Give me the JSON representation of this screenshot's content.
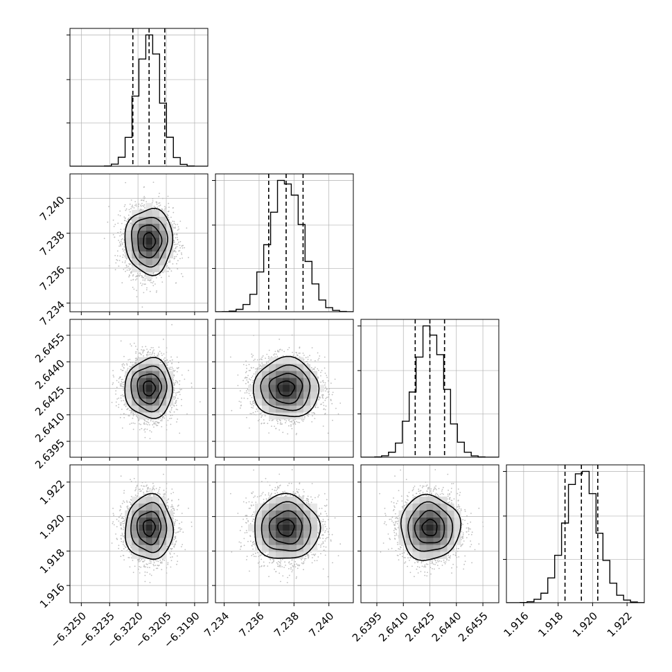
{
  "chart_data": {
    "type": "corner",
    "title": "",
    "grid": true,
    "parameters": [
      {
        "range": [
          -6.3256,
          -6.3183
        ],
        "ticks": [
          -6.325,
          -6.3235,
          -6.322,
          -6.3205,
          -6.319
        ],
        "tick_labels": [
          "−6.3250",
          "−6.3235",
          "−6.3220",
          "−6.3205",
          "−6.3190"
        ],
        "quantiles": [
          -6.32227,
          -6.32141,
          -6.32058
        ],
        "mean": -6.32141,
        "sd": 0.00063
      },
      {
        "range": [
          7.2335,
          7.2414
        ],
        "ticks": [
          7.234,
          7.236,
          7.238,
          7.24
        ],
        "tick_labels": [
          "7.234",
          "7.236",
          "7.238",
          "7.240"
        ],
        "quantiles": [
          7.23655,
          7.23755,
          7.23852
        ],
        "mean": 7.23755,
        "sd": 0.00094
      },
      {
        "range": [
          2.6386,
          2.6464
        ],
        "ticks": [
          2.6395,
          2.641,
          2.6425,
          2.644,
          2.6455
        ],
        "tick_labels": [
          "2.6395",
          "2.6410",
          "2.6425",
          "2.6440",
          "2.6455"
        ],
        "quantiles": [
          2.64167,
          2.6425,
          2.64333
        ],
        "mean": 2.6425,
        "sd": 0.00084
      },
      {
        "range": [
          1.915,
          1.923
        ],
        "ticks": [
          1.916,
          1.918,
          1.92,
          1.922
        ],
        "tick_labels": [
          "1.916",
          "1.918",
          "1.920",
          "1.922"
        ],
        "quantiles": [
          1.9184,
          1.91935,
          1.9203
        ],
        "mean": 1.91935,
        "sd": 0.00094
      }
    ],
    "histogram_bins": 20,
    "samples_per_panel": 3000,
    "contour_levels": [
      "0.5 sigma",
      "1 sigma",
      "1.5 sigma",
      "2 sigma"
    ],
    "colors": {
      "line": "#000000",
      "grid": "#b0b0b0",
      "points": "#bdbdbd"
    }
  }
}
